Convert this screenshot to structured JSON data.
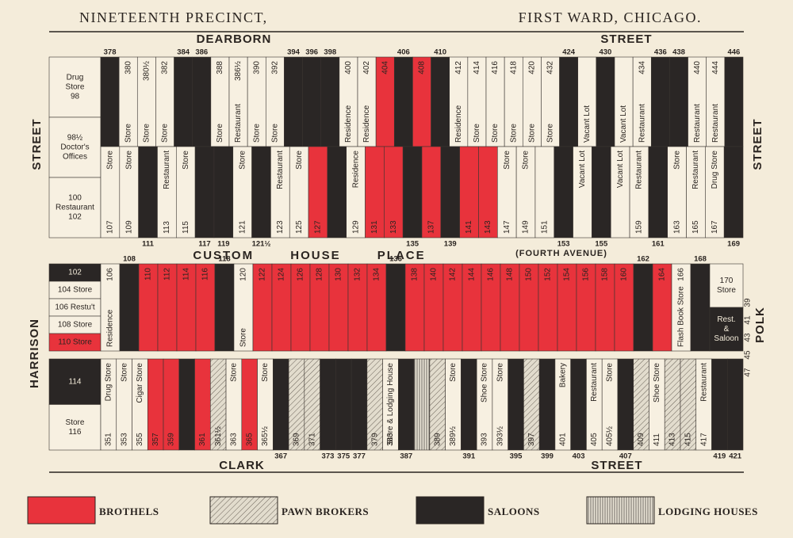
{
  "header": {
    "left": "NINETEENTH PRECINCT,",
    "right": "FIRST WARD, CHICAGO."
  },
  "streets": {
    "top_left": "DEARBORN",
    "top_right": "STREET",
    "upper_left": "STREET",
    "upper_right": "STREET",
    "middle": "CUSTOM HOUSE PLACE",
    "middle_note": "(FOURTH AVENUE)",
    "lower_left": "HARRISON",
    "lower_right": "POLK",
    "bottom_left": "CLARK",
    "bottom_right": "STREET"
  },
  "side_numbers": [
    "39",
    "41",
    "43",
    "45",
    "47"
  ],
  "upper_block": {
    "corner": [
      {
        "lines": [
          "Drug",
          "Store",
          "98"
        ]
      },
      {
        "lines": [
          "98½",
          "Doctor's",
          "Offices"
        ]
      },
      {
        "lines": [
          "100",
          "Restaurant",
          "102"
        ]
      }
    ],
    "top_row": [
      {
        "no": "378",
        "kind": 2
      },
      {
        "no": "380",
        "use": "Store"
      },
      {
        "no": "380½",
        "use": "Store"
      },
      {
        "no": "382",
        "use": "Store"
      },
      {
        "no": "384",
        "kind": 2
      },
      {
        "no": "386",
        "kind": 2
      },
      {
        "no": "388",
        "use": "Store"
      },
      {
        "no": "386½",
        "use": "Restaurant"
      },
      {
        "no": "390",
        "use": "Store"
      },
      {
        "no": "392",
        "use": "Store"
      },
      {
        "no": "394",
        "kind": 2
      },
      {
        "no": "396",
        "kind": 2
      },
      {
        "no": "398",
        "kind": 2
      },
      {
        "no": "400",
        "use": "Residence"
      },
      {
        "no": "402",
        "use": "Residence"
      },
      {
        "no": "404",
        "kind": 0
      },
      {
        "no": "406",
        "kind": 2
      },
      {
        "no": "408",
        "kind": 0
      },
      {
        "no": "410",
        "kind": 2
      },
      {
        "no": "412",
        "use": "Residence"
      },
      {
        "no": "414",
        "use": "Store"
      },
      {
        "no": "416",
        "use": "Store"
      },
      {
        "no": "418",
        "use": "Store"
      },
      {
        "no": "420",
        "use": "Store"
      },
      {
        "no": "432",
        "use": "Store"
      },
      {
        "no": "424",
        "kind": 2
      },
      {
        "use": "Vacant Lot"
      },
      {
        "no": "430",
        "kind": 2
      },
      {
        "use": "Vacant Lot"
      },
      {
        "no": "434",
        "use": "Restaurant"
      },
      {
        "no": "436",
        "kind": 2
      },
      {
        "no": "438",
        "kind": 2
      },
      {
        "no": "440",
        "use": "Restaurant"
      },
      {
        "no": "444",
        "use": "Restaurant"
      },
      {
        "no": "446",
        "kind": 2
      }
    ],
    "bottom_row": [
      {
        "no": "107",
        "use": "Store"
      },
      {
        "no": "109",
        "use": "Store"
      },
      {
        "no": "111",
        "kind": 2
      },
      {
        "no": "113",
        "use": "Restaurant"
      },
      {
        "no": "115",
        "use": "Store"
      },
      {
        "no": "117",
        "kind": 2
      },
      {
        "no": "119",
        "kind": 2
      },
      {
        "no": "121",
        "use": "Store"
      },
      {
        "no": "121½",
        "kind": 2
      },
      {
        "no": "123",
        "use": "Restaurant"
      },
      {
        "no": "125",
        "use": "Store"
      },
      {
        "no": "127",
        "kind": 0
      },
      {
        "kind": 2
      },
      {
        "no": "129",
        "use": "Residence"
      },
      {
        "no": "131",
        "kind": 0
      },
      {
        "no": "133",
        "kind": 0
      },
      {
        "no": "135",
        "kind": 2
      },
      {
        "no": "137",
        "kind": 0
      },
      {
        "no": "139",
        "kind": 2
      },
      {
        "no": "141",
        "kind": 0
      },
      {
        "no": "143",
        "kind": 0
      },
      {
        "no": "147",
        "use": "Store"
      },
      {
        "no": "149",
        "use": "Store"
      },
      {
        "no": "151"
      },
      {
        "no": "153",
        "kind": 2
      },
      {
        "use": "Vacant Lot"
      },
      {
        "no": "155",
        "kind": 2
      },
      {
        "use": "Vacant Lot"
      },
      {
        "no": "159",
        "use": "Restaurant"
      },
      {
        "no": "161",
        "kind": 2
      },
      {
        "no": "163",
        "use": "Store"
      },
      {
        "no": "165",
        "use": "Restaurant"
      },
      {
        "no": "167",
        "use": "Drug Store"
      },
      {
        "no": "169",
        "kind": 2
      }
    ]
  },
  "lower_block": {
    "corner_top": [
      {
        "lines": [
          "102"
        ],
        "kind": 2
      },
      {
        "lines": [
          "104 Store"
        ]
      },
      {
        "lines": [
          "106 Restu't"
        ]
      },
      {
        "lines": [
          "108 Store"
        ]
      },
      {
        "lines": [
          "110 Store"
        ],
        "kind": 0
      }
    ],
    "corner_bottom": [
      {
        "lines": [
          "114"
        ],
        "kind": 2
      },
      {
        "lines": [
          "Store",
          "116"
        ]
      }
    ],
    "corner_right": [
      {
        "lines": [
          "170",
          "Store"
        ]
      },
      {
        "lines": [
          "Rest.",
          "&",
          "Saloon"
        ],
        "kind": 2
      }
    ],
    "top_row": [
      {
        "no": "106",
        "use": "Residence"
      },
      {
        "no": "108",
        "kind": 2
      },
      {
        "no": "110",
        "kind": 0
      },
      {
        "no": "112",
        "kind": 0
      },
      {
        "no": "114",
        "kind": 0
      },
      {
        "no": "116",
        "kind": 0
      },
      {
        "no": "118",
        "kind": 2
      },
      {
        "no": "120",
        "use": "Store"
      },
      {
        "no": "122",
        "kind": 0
      },
      {
        "no": "124",
        "kind": 0
      },
      {
        "no": "126",
        "kind": 0
      },
      {
        "no": "128",
        "kind": 0
      },
      {
        "no": "130",
        "kind": 0
      },
      {
        "no": "132",
        "kind": 0
      },
      {
        "no": "134",
        "kind": 0
      },
      {
        "no": "136",
        "kind": 2
      },
      {
        "no": "138",
        "kind": 0
      },
      {
        "no": "140",
        "kind": 0
      },
      {
        "no": "142",
        "kind": 0
      },
      {
        "no": "144",
        "kind": 0
      },
      {
        "no": "146",
        "kind": 0
      },
      {
        "no": "148",
        "kind": 0
      },
      {
        "no": "150",
        "kind": 0
      },
      {
        "no": "152",
        "kind": 0
      },
      {
        "no": "154",
        "kind": 0
      },
      {
        "no": "156",
        "kind": 0
      },
      {
        "no": "158",
        "kind": 0
      },
      {
        "no": "160",
        "kind": 0
      },
      {
        "no": "162",
        "kind": 2
      },
      {
        "no": "164",
        "kind": 0
      },
      {
        "no": "166",
        "use": "Flash Book Store"
      },
      {
        "no": "168",
        "kind": 2
      }
    ],
    "bottom_row": [
      {
        "no": "351",
        "use": "Drug Store"
      },
      {
        "no": "353",
        "use": "Store"
      },
      {
        "no": "355",
        "use": "Cigar Store"
      },
      {
        "no": "357",
        "kind": 0
      },
      {
        "no": "359",
        "kind": 0
      },
      {
        "kind": 2
      },
      {
        "no": "361",
        "kind": 0
      },
      {
        "no": "361½",
        "kind": 1
      },
      {
        "no": "363",
        "use": "Store"
      },
      {
        "no": "365",
        "kind": 0
      },
      {
        "no": "365½",
        "use": "Store"
      },
      {
        "no": "367",
        "kind": 2
      },
      {
        "no": "369",
        "kind": 1
      },
      {
        "no": "371",
        "kind": 1
      },
      {
        "no": "373",
        "kind": 2
      },
      {
        "no": "375",
        "kind": 2
      },
      {
        "no": "377",
        "kind": 2
      },
      {
        "no": "379",
        "kind": 1
      },
      {
        "no": "383",
        "use": "Store & Lodging House"
      },
      {
        "no": "387",
        "kind": 2
      },
      {
        "kind": 3
      },
      {
        "no": "389",
        "kind": 1
      },
      {
        "no": "389½",
        "use": "Store"
      },
      {
        "no": "391",
        "kind": 2
      },
      {
        "no": "393",
        "use": "Shoe Store"
      },
      {
        "no": "393½",
        "use": "Store"
      },
      {
        "no": "395",
        "kind": 2
      },
      {
        "no": "397",
        "kind": 1
      },
      {
        "no": "399",
        "kind": 2
      },
      {
        "no": "401",
        "use": "Bakery"
      },
      {
        "no": "403",
        "kind": 2
      },
      {
        "no": "405",
        "use": "Restaurant"
      },
      {
        "no": "405½",
        "use": "Store"
      },
      {
        "no": "407",
        "kind": 2
      },
      {
        "no": "409",
        "kind": 1
      },
      {
        "no": "411",
        "use": "Shoe Store"
      },
      {
        "no": "413",
        "kind": 1
      },
      {
        "no": "415",
        "kind": 1
      },
      {
        "no": "417",
        "use": "Restaurant"
      },
      {
        "no": "419",
        "kind": 2
      },
      {
        "no": "421",
        "kind": 2
      }
    ]
  },
  "legend": {
    "items": [
      {
        "label": "BROTHELS",
        "color": "#e8333c"
      },
      {
        "label": "PAWN BROKERS",
        "color": "#e2dccd",
        "pattern": "diagonal"
      },
      {
        "label": "SALOONS",
        "color": "#2a2625"
      },
      {
        "label": "LODGING HOUSES",
        "color": "#ece6d8",
        "pattern": "vertical"
      }
    ]
  }
}
